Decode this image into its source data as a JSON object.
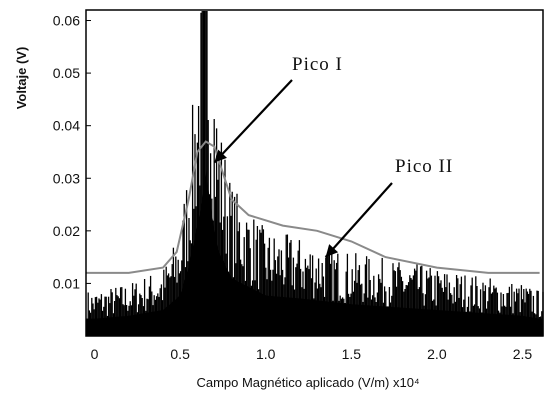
{
  "chart_data": {
    "type": "line",
    "title": "",
    "xlabel": "Campo Magnético aplicado (V/m)  x10⁴",
    "ylabel": "Voltaje (V)",
    "xlim": [
      -0.05,
      2.62
    ],
    "ylim": [
      0,
      0.062
    ],
    "x_ticks": [
      "0",
      "0.5",
      "1.0",
      "1.5",
      "2.0",
      "2.5"
    ],
    "x_tick_values": [
      0,
      0.5,
      1.0,
      1.5,
      2.0,
      2.5
    ],
    "y_ticks": [
      "0.01",
      "0.02",
      "0.03",
      "0.04",
      "0.05",
      "0.06"
    ],
    "y_tick_values": [
      0.01,
      0.02,
      0.03,
      0.04,
      0.05,
      0.06
    ],
    "grid": false,
    "series": [
      {
        "style": "dense-black-signal",
        "x": [
          0.0,
          0.2,
          0.4,
          0.5,
          0.55,
          0.6,
          0.63,
          0.65,
          0.68,
          0.72,
          0.8,
          1.0,
          1.2,
          1.5,
          2.0,
          2.5,
          2.6
        ],
        "y": [
          0.006,
          0.007,
          0.009,
          0.014,
          0.024,
          0.038,
          0.047,
          0.058,
          0.044,
          0.03,
          0.02,
          0.014,
          0.013,
          0.011,
          0.009,
          0.007,
          0.006
        ]
      },
      {
        "style": "envelope-gray-line",
        "x": [
          -0.05,
          0.2,
          0.4,
          0.48,
          0.55,
          0.6,
          0.65,
          0.7,
          0.75,
          0.8,
          0.9,
          1.1,
          1.3,
          1.5,
          1.7,
          2.0,
          2.3,
          2.6
        ],
        "y": [
          0.012,
          0.012,
          0.013,
          0.016,
          0.026,
          0.035,
          0.037,
          0.036,
          0.031,
          0.026,
          0.023,
          0.021,
          0.02,
          0.018,
          0.015,
          0.013,
          0.012,
          0.012
        ]
      }
    ],
    "annotations": [
      {
        "text": "Pico I",
        "arrow_to": [
          0.7,
          0.033
        ]
      },
      {
        "text": "Pico II",
        "arrow_to": [
          1.35,
          0.015
        ]
      }
    ]
  }
}
